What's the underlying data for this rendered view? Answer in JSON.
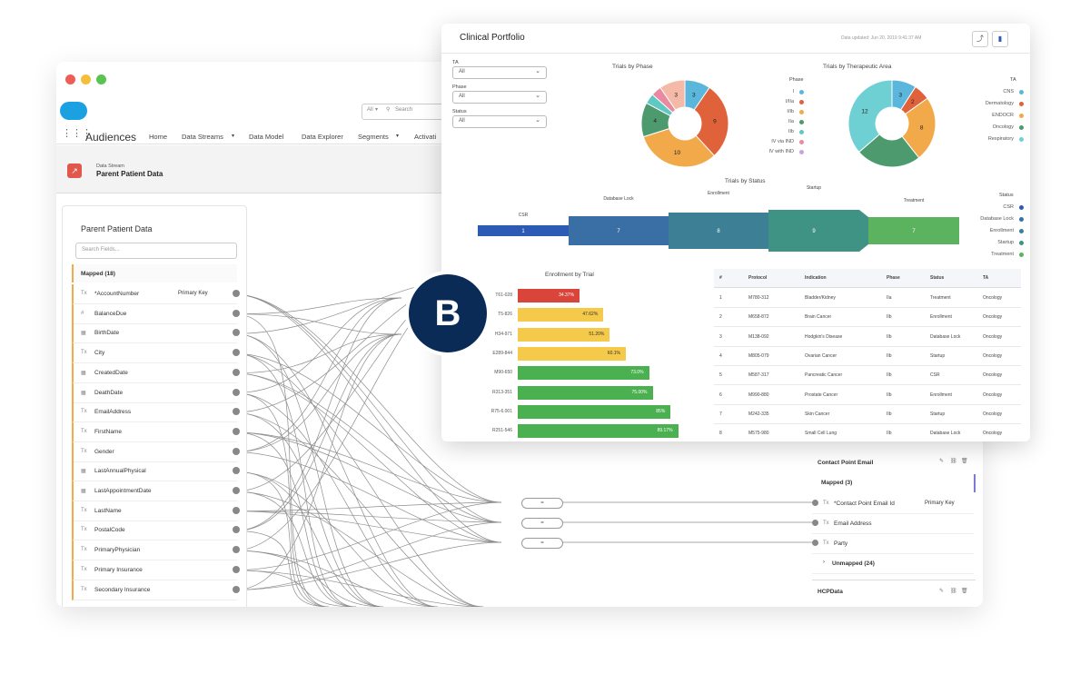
{
  "back_window": {
    "app_name": "Audiences",
    "search_scope": "All",
    "search_placeholder": "Search",
    "nav": [
      "Home",
      "Data Streams",
      "Data Model",
      "Data Explorer",
      "Segments",
      "Activati"
    ],
    "page": {
      "object": "Data Stream",
      "title": "Parent Patient Data"
    },
    "left_panel": {
      "title": "Parent Patient Data",
      "search_placeholder": "Search Fields...",
      "mapped_header": "Mapped (18)",
      "primary_key_label": "Primary Key",
      "fields": [
        {
          "icon": "text",
          "label": "*AccountNumber"
        },
        {
          "icon": "number",
          "label": "BalanceDue"
        },
        {
          "icon": "date",
          "label": "BirthDate"
        },
        {
          "icon": "text",
          "label": "City"
        },
        {
          "icon": "date",
          "label": "CreatedDate"
        },
        {
          "icon": "date",
          "label": "DeathDate"
        },
        {
          "icon": "text",
          "label": "EmailAddress"
        },
        {
          "icon": "text",
          "label": "FirstName"
        },
        {
          "icon": "text",
          "label": "Gender"
        },
        {
          "icon": "date",
          "label": "LastAnnualPhysical"
        },
        {
          "icon": "date",
          "label": "LastAppointmentDate"
        },
        {
          "icon": "text",
          "label": "LastName"
        },
        {
          "icon": "text",
          "label": "PostalCode"
        },
        {
          "icon": "text",
          "label": "PrimaryPhysician"
        },
        {
          "icon": "text",
          "label": "Primary Insurance"
        },
        {
          "icon": "text",
          "label": "Secondary Insurance"
        }
      ]
    },
    "transforms": [
      "=",
      "=",
      "="
    ],
    "right_panel": {
      "title": "Contact Point Email",
      "mapped_header": "Mapped (3)",
      "primary_key_label": "Primary Key",
      "fields": [
        "*Contact Point Email Id",
        "Email Address",
        "Party"
      ],
      "unmapped_header": "Unmapped (24)",
      "next_title": "HCPData"
    }
  },
  "front_window": {
    "title": "Clinical Portfolio",
    "updated": "Data updated: Jun 20, 2019 9:41:37 AM",
    "filters": [
      {
        "label": "TA",
        "value": "All"
      },
      {
        "label": "Phase",
        "value": "All"
      },
      {
        "label": "Status",
        "value": "All"
      }
    ],
    "phase_chart": {
      "title": "Trials by Phase",
      "legend_title": "Phase",
      "legend": [
        {
          "name": "I",
          "color": "#5bb6dc"
        },
        {
          "name": "I/IIa",
          "color": "#e0623a"
        },
        {
          "name": "I/Ib",
          "color": "#f2a94a"
        },
        {
          "name": "IIa",
          "color": "#4d9a6e"
        },
        {
          "name": "IIb",
          "color": "#5fc8c2"
        },
        {
          "name": "IV via IND",
          "color": "#e98aa1"
        },
        {
          "name": "IV with IND",
          "color": "#c7a5d8"
        }
      ],
      "slices": [
        {
          "label": "3",
          "value": 3,
          "color": "#5bb6dc"
        },
        {
          "label": "9",
          "value": 9,
          "color": "#e0623a"
        },
        {
          "label": "10",
          "value": 10,
          "color": "#f2a94a"
        },
        {
          "label": "4",
          "value": 4,
          "color": "#4d9a6e"
        },
        {
          "label": "",
          "value": 1.2,
          "color": "#5fc8c2"
        },
        {
          "label": "",
          "value": 1.2,
          "color": "#e98aa1"
        },
        {
          "label": "3",
          "value": 3,
          "color": "#f5b9a8"
        }
      ]
    },
    "ta_chart": {
      "title": "Trials by Therapeutic Area",
      "legend_title": "TA",
      "legend": [
        {
          "name": "CNS",
          "color": "#5bb6dc"
        },
        {
          "name": "Dermatology",
          "color": "#e0623a"
        },
        {
          "name": "ENDOCR",
          "color": "#f2a94a"
        },
        {
          "name": "Oncology",
          "color": "#4d9a6e"
        },
        {
          "name": "Respiratory",
          "color": "#6fd0d4"
        }
      ],
      "slices": [
        {
          "label": "3",
          "value": 3,
          "color": "#5bb6dc"
        },
        {
          "label": "2",
          "value": 2,
          "color": "#e0623a"
        },
        {
          "label": "8",
          "value": 8,
          "color": "#f2a94a"
        },
        {
          "label": "",
          "value": 8,
          "color": "#4d9a6e"
        },
        {
          "label": "12",
          "value": 12,
          "color": "#6fd0d4"
        }
      ]
    },
    "status_chart": {
      "title": "Trials by Status",
      "legend_title": "Status",
      "stages": [
        {
          "name": "CSR",
          "value": "1",
          "color": "#2b5bb5"
        },
        {
          "name": "Database Lock",
          "value": "7",
          "color": "#3a6fa5"
        },
        {
          "name": "Enrollment",
          "value": "8",
          "color": "#3d8096"
        },
        {
          "name": "Startup",
          "value": "9",
          "color": "#3f9384"
        },
        {
          "name": "Treatment",
          "value": "7",
          "color": "#5cb35f"
        }
      ],
      "legend": [
        {
          "name": "CSR",
          "color": "#2b5bb5"
        },
        {
          "name": "Database Lock",
          "color": "#3a6fa5"
        },
        {
          "name": "Enrollment",
          "color": "#3d8096"
        },
        {
          "name": "Startup",
          "color": "#3f9384"
        },
        {
          "name": "Treatment",
          "color": "#5cb35f"
        }
      ]
    },
    "enrollment_chart": {
      "title": "Enrollment by Trial",
      "rows": [
        {
          "trial": "T61-028",
          "pct": 34.37,
          "label": "34.37%",
          "color": "#d9453b"
        },
        {
          "trial": "T5-826",
          "pct": 47.62,
          "label": "47.62%",
          "color": "#f5c94a"
        },
        {
          "trial": "H34-971",
          "pct": 51.2,
          "label": "51.20%",
          "color": "#f5c94a"
        },
        {
          "trial": "E289-844",
          "pct": 60.1,
          "label": "60.1%",
          "color": "#f5c94a"
        },
        {
          "trial": "M90-650",
          "pct": 73.0,
          "label": "73.0%",
          "color": "#4bb04f"
        },
        {
          "trial": "R313-351",
          "pct": 75.0,
          "label": "75.00%",
          "color": "#4bb04f"
        },
        {
          "trial": "R75-6.001",
          "pct": 85.0,
          "label": "85%",
          "color": "#4bb04f"
        },
        {
          "trial": "R251-546",
          "pct": 89.17,
          "label": "89.17%",
          "color": "#4bb04f"
        }
      ]
    },
    "table": {
      "columns": [
        "#",
        "Protocol",
        "Indication",
        "Phase",
        "Status",
        "TA"
      ],
      "rows": [
        [
          "1",
          "M780-312",
          "Bladder/Kidney",
          "IIa",
          "Treatment",
          "Oncology"
        ],
        [
          "2",
          "M658-872",
          "Brain Cancer",
          "IIb",
          "Enrollment",
          "Oncology"
        ],
        [
          "3",
          "M138-092",
          "Hodgkin's Disease",
          "IIb",
          "Database Lock",
          "Oncology"
        ],
        [
          "4",
          "M805-079",
          "Ovarian Cancer",
          "IIb",
          "Startup",
          "Oncology"
        ],
        [
          "5",
          "M587-317",
          "Pancreatic Cancer",
          "IIb",
          "CSR",
          "Oncology"
        ],
        [
          "6",
          "M990-880",
          "Prostate Cancer",
          "IIb",
          "Enrollment",
          "Oncology"
        ],
        [
          "7",
          "M242-335",
          "Skin Cancer",
          "IIb",
          "Startup",
          "Oncology"
        ],
        [
          "8",
          "M575-980",
          "Small Cell Lung",
          "IIb",
          "Database Lock",
          "Oncology"
        ]
      ]
    }
  },
  "badge": {
    "letter": "B",
    "color": "#0b2b57"
  }
}
